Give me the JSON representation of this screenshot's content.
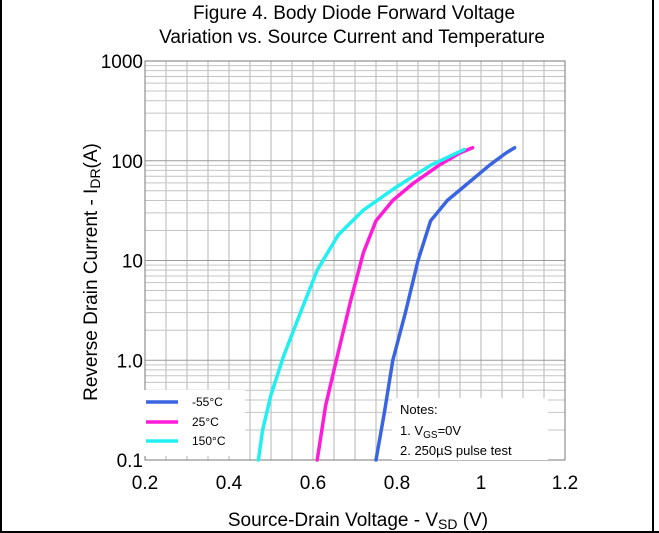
{
  "chart_data": {
    "type": "line",
    "title_line1": "Figure 4. Body Diode Forward Voltage",
    "title_line2": "Variation vs. Source Current and Temperature",
    "xlabel_main": "Source-Drain Voltage - V",
    "xlabel_sub": "SD",
    "xlabel_unit": " (V)",
    "ylabel_main": "Reverse Drain Current - I",
    "ylabel_sub": "DR",
    "ylabel_unit": "(A)",
    "xlim": [
      0.2,
      1.2
    ],
    "ylim": [
      0.1,
      1000
    ],
    "yscale": "log",
    "grid": true,
    "x_ticks": [
      {
        "value": 0.2,
        "label": "0.2"
      },
      {
        "value": 0.4,
        "label": "0.4"
      },
      {
        "value": 0.6,
        "label": "0.6"
      },
      {
        "value": 0.8,
        "label": "0.8"
      },
      {
        "value": 1.0,
        "label": "1"
      },
      {
        "value": 1.2,
        "label": "1.2"
      }
    ],
    "y_ticks": [
      {
        "value": 0.1,
        "label": "0.1"
      },
      {
        "value": 1,
        "label": "1.0"
      },
      {
        "value": 10,
        "label": "10"
      },
      {
        "value": 100,
        "label": "100"
      },
      {
        "value": 1000,
        "label": "1000"
      }
    ],
    "series": [
      {
        "name": "-55°C",
        "color": "#3a64e0",
        "x": [
          0.75,
          0.77,
          0.79,
          0.82,
          0.85,
          0.88,
          0.92,
          0.97,
          1.02,
          1.06,
          1.08
        ],
        "y": [
          0.1,
          0.3,
          1.0,
          3.0,
          10,
          25,
          40,
          60,
          90,
          120,
          135
        ]
      },
      {
        "name": "25°C",
        "color": "#ff1cd8",
        "x": [
          0.61,
          0.63,
          0.66,
          0.69,
          0.72,
          0.75,
          0.79,
          0.84,
          0.9,
          0.95,
          0.98
        ],
        "y": [
          0.1,
          0.35,
          1.2,
          4.0,
          12,
          25,
          40,
          60,
          90,
          120,
          135
        ]
      },
      {
        "name": "150°C",
        "color": "#22f0f0",
        "x": [
          0.47,
          0.48,
          0.5,
          0.53,
          0.57,
          0.61,
          0.66,
          0.72,
          0.8,
          0.88,
          0.96
        ],
        "y": [
          0.1,
          0.2,
          0.45,
          1.1,
          3.0,
          8.0,
          18,
          32,
          55,
          90,
          130
        ]
      }
    ],
    "legend_placement": "bottom-left",
    "notes": {
      "heading": "Notes:",
      "line1_prefix": "1. V",
      "line1_sub": "GS",
      "line1_suffix": "=0V",
      "line2": "2. 250µS pulse test"
    }
  }
}
